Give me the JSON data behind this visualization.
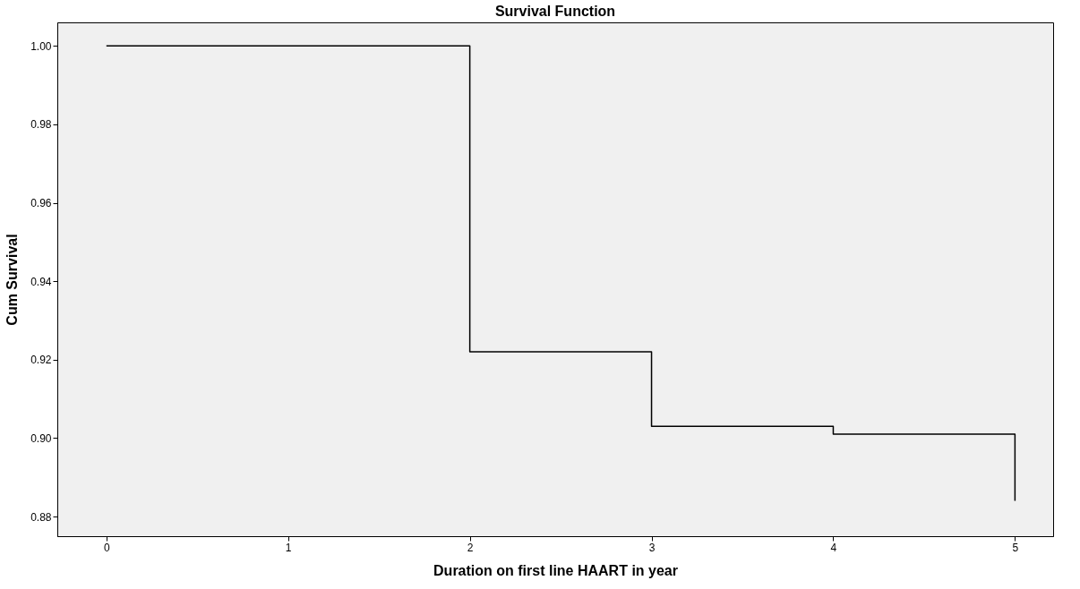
{
  "chart_data": {
    "type": "step",
    "title": "Survival Function",
    "xlabel": "Duration on first line HAART in year",
    "ylabel": "Cum Survival",
    "x": [
      0,
      2,
      3,
      4,
      5
    ],
    "series": [
      {
        "color": "#000000",
        "values": [
          1.0,
          0.922,
          0.903,
          0.901,
          0.884
        ]
      }
    ],
    "xlim": [
      -0.27,
      5.21
    ],
    "xticks": [
      0,
      1,
      2,
      3,
      4,
      5
    ],
    "ylim": [
      0.875,
      1.006
    ],
    "yticks": [
      0.88,
      {
        "value": 0.9,
        "label": "0.90"
      },
      0.92,
      0.94,
      0.96,
      0.98,
      {
        "value": 1.0,
        "label": "1.00"
      }
    ],
    "grid": false,
    "marker": "none",
    "line_style": "solid"
  }
}
